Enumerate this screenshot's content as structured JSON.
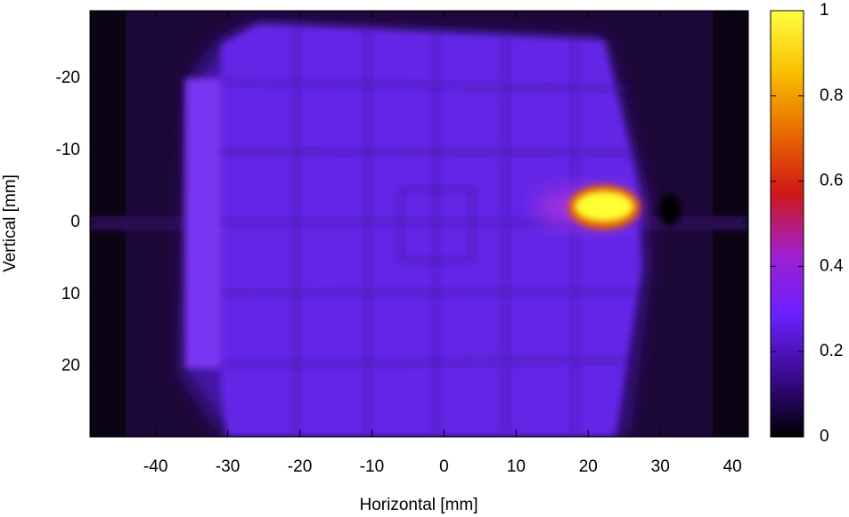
{
  "chart_data": {
    "type": "heatmap",
    "xlabel": "Horizontal [mm]",
    "ylabel": "Vertical [mm]",
    "xlim": [
      -49.1,
      42.2
    ],
    "xticks": [
      -40,
      -30,
      -20,
      -10,
      0,
      10,
      20,
      30,
      40
    ],
    "ylim": [
      -29.4,
      29.8
    ],
    "yticks": [
      -20,
      -10,
      0,
      10,
      20
    ],
    "colorbar": {
      "lim": [
        0,
        1
      ],
      "ticks": [
        0,
        0.2,
        0.4,
        0.6,
        0.8,
        1
      ],
      "palette": [
        "#000000",
        "#3a0a90",
        "#6a20ff",
        "#a020d0",
        "#d01818",
        "#e86a00",
        "#f8c000",
        "#ffff40"
      ]
    }
  }
}
